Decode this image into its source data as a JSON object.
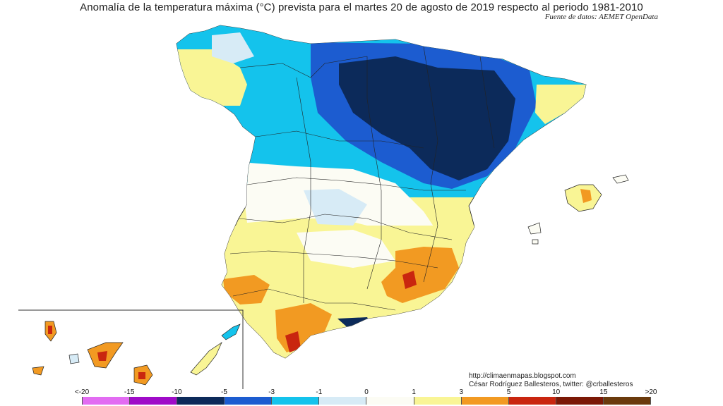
{
  "title": "Anomalía de la temperatura máxima (°C) prevista para el martes 20 de agosto de 2019 respecto al periodo 1981-2010",
  "source": "Fuente de datos: AEMET OpenData",
  "credits": {
    "blog": "http://climaenmapas.blogspot.com",
    "author": "César Rodríguez Ballesteros, twitter: @crballesteros"
  },
  "legend": {
    "ticks": [
      "<-20",
      "-15",
      "-10",
      "-5",
      "-3",
      "-1",
      "0",
      "1",
      "3",
      "5",
      "10",
      "15",
      ">20"
    ],
    "colors": [
      "#e26cf2",
      "#9f0bc8",
      "#0c2a5a",
      "#1c5cd0",
      "#14c3ec",
      "#d7ebf6",
      "#fcfcf4",
      "#f9f595",
      "#f29a22",
      "#c9260f",
      "#7b1806",
      "#6a3a0c"
    ]
  }
}
